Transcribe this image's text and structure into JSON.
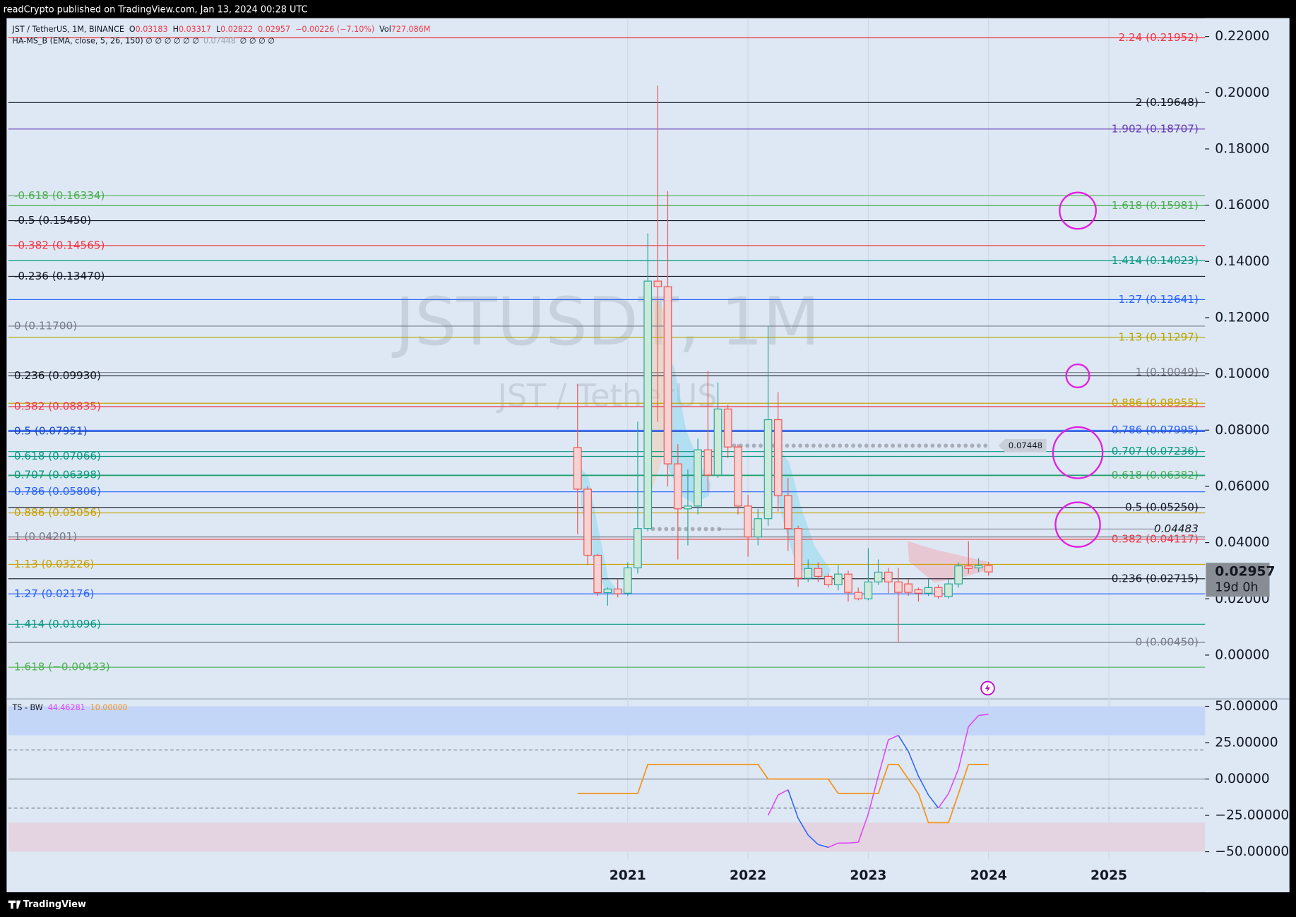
{
  "header": {
    "attribution": "readCrypto published on TradingView.com, Jan 13, 2024 00:28 UTC",
    "brand": "TradingView"
  },
  "chart_data": [
    {
      "type": "candlestick",
      "title": "JSTUSDT, 1M",
      "subtitle": "JST / TetherUS",
      "symbol": "JST / TetherUS, 1M, BINANCE",
      "ohlc_legend": [
        {
          "label": "O",
          "value": 0.03183
        },
        {
          "label": "H",
          "value": 0.03317
        },
        {
          "label": "L",
          "value": 0.02822
        }
      ],
      "change": "−0.00226 (−7.10%)",
      "volume_label": "Vol",
      "volume": "727.086M",
      "indicator_legend": "HA-MS_B (EMA, close, 5, 26, 150)  ∅ ∅ ∅ ∅ ∅ ∅",
      "indicator_last": 0.07448,
      "indicator_tail": "∅ ∅ ∅ ∅",
      "countdown": "19d 0h",
      "x": [
        2020.583,
        2020.667,
        2020.75,
        2020.833,
        2020.917,
        2021,
        2021.083,
        2021.167,
        2021.25,
        2021.333,
        2021.417,
        2021.5,
        2021.583,
        2021.667,
        2021.75,
        2021.833,
        2021.917,
        2022,
        2022.083,
        2022.167,
        2022.25,
        2022.333,
        2022.417,
        2022.5,
        2022.583,
        2022.667,
        2022.75,
        2022.833,
        2022.917,
        2023,
        2023.083,
        2023.167,
        2023.25,
        2023.333,
        2023.417,
        2023.5,
        2023.583,
        2023.667,
        2023.75,
        2023.833,
        2023.917,
        2024
      ],
      "open": [
        0.0738,
        0.059,
        0.0355,
        0.0222,
        0.0235,
        0.022,
        0.031,
        0.045,
        0.133,
        0.131,
        0.068,
        0.052,
        0.053,
        0.073,
        0.064,
        0.0875,
        0.074,
        0.053,
        0.042,
        0.0485,
        0.0837,
        0.0567,
        0.045,
        0.0273,
        0.0308,
        0.028,
        0.025,
        0.0288,
        0.0223,
        0.02,
        0.026,
        0.0295,
        0.026,
        0.0253,
        0.0232,
        0.022,
        0.024,
        0.0208,
        0.0253,
        0.0317,
        0.031,
        0.03183
      ],
      "high": [
        0.0963,
        0.06,
        0.036,
        0.024,
        0.027,
        0.033,
        0.083,
        0.15,
        0.2025,
        0.165,
        0.075,
        0.066,
        0.077,
        0.101,
        0.097,
        0.089,
        0.075,
        0.057,
        0.052,
        0.117,
        0.0935,
        0.063,
        0.046,
        0.034,
        0.033,
        0.029,
        0.032,
        0.03,
        0.024,
        0.038,
        0.034,
        0.031,
        0.031,
        0.027,
        0.024,
        0.027,
        0.025,
        0.027,
        0.033,
        0.0405,
        0.0345,
        0.03317
      ],
      "low": [
        0.043,
        0.032,
        0.021,
        0.0176,
        0.0205,
        0.021,
        0.029,
        0.044,
        0.083,
        0.06,
        0.034,
        0.039,
        0.05,
        0.058,
        0.063,
        0.07,
        0.05,
        0.035,
        0.039,
        0.046,
        0.051,
        0.037,
        0.0243,
        0.026,
        0.026,
        0.024,
        0.023,
        0.019,
        0.0195,
        0.0195,
        0.025,
        0.022,
        0.0045,
        0.021,
        0.019,
        0.021,
        0.02,
        0.02,
        0.024,
        0.029,
        0.0295,
        0.02822
      ],
      "close": [
        0.059,
        0.0355,
        0.0222,
        0.0235,
        0.0218,
        0.031,
        0.045,
        0.133,
        0.131,
        0.068,
        0.052,
        0.053,
        0.073,
        0.064,
        0.0875,
        0.074,
        0.053,
        0.042,
        0.0485,
        0.0837,
        0.0567,
        0.045,
        0.0273,
        0.0308,
        0.028,
        0.025,
        0.0288,
        0.0223,
        0.02,
        0.026,
        0.0295,
        0.026,
        0.0223,
        0.0223,
        0.022,
        0.024,
        0.0208,
        0.0253,
        0.0317,
        0.0308,
        0.0318,
        0.02957
      ],
      "up_color": "#26a69a",
      "down_color": "#ef5350",
      "xlim": [
        2015.85,
        2025.8
      ],
      "xticks": [
        2021,
        2022,
        2023,
        2024,
        2025
      ],
      "xgrid": true,
      "ylim": [
        -0.0153,
        0.2265
      ],
      "yticks": [
        {
          "value": 0.22,
          "label": "0.22000"
        },
        {
          "value": 0.2,
          "label": "0.20000"
        },
        {
          "value": 0.18,
          "label": "0.18000"
        },
        {
          "value": 0.16,
          "label": "0.16000"
        },
        {
          "value": 0.14,
          "label": "0.14000"
        },
        {
          "value": 0.12,
          "label": "0.12000"
        },
        {
          "value": 0.1,
          "label": "0.10000"
        },
        {
          "value": 0.08,
          "label": "0.08000"
        },
        {
          "value": 0.06,
          "label": "0.06000"
        },
        {
          "value": 0.04,
          "label": "0.04000"
        },
        {
          "value": 0.02,
          "label": "0.02000"
        },
        {
          "value": 0,
          "label": "0.00000"
        }
      ],
      "levels": [
        {
          "side": "right",
          "label": "2.24 (0.21952)",
          "value": 0.21952,
          "color": "#f23645"
        },
        {
          "side": "right",
          "label": "2 (0.19648)",
          "value": 0.19648,
          "color": "#131722"
        },
        {
          "side": "right",
          "label": "1.902 (0.18707)",
          "value": 0.18707,
          "color": "#673ab7"
        },
        {
          "side": "right",
          "label": "1.618 (0.15981)",
          "value": 0.15981,
          "color": "#4caf50"
        },
        {
          "side": "right",
          "label": "1.414 (0.14023)",
          "value": 0.14023,
          "color": "#089981"
        },
        {
          "side": "right",
          "label": "1.27 (0.12641)",
          "value": 0.12641,
          "color": "#2962ff"
        },
        {
          "side": "right",
          "label": "1.13 (0.11297)",
          "value": 0.11297,
          "color": "#b5a600"
        },
        {
          "side": "right",
          "label": "1 (0.10049)",
          "value": 0.10049,
          "color": "#787b86"
        },
        {
          "side": "right",
          "label": "0.886 (0.08955)",
          "value": 0.08955,
          "color": "#c9a000"
        },
        {
          "side": "right",
          "label": "0.786 (0.07995)",
          "value": 0.07995,
          "color": "#2962ff"
        },
        {
          "side": "right",
          "label": "0.707 (0.07236)",
          "value": 0.07236,
          "color": "#089981"
        },
        {
          "side": "right",
          "label": "0.618 (0.06382)",
          "value": 0.06382,
          "color": "#4caf50"
        },
        {
          "side": "right",
          "label": "0.5 (0.05250)",
          "value": 0.0525,
          "color": "#131722"
        },
        {
          "side": "right",
          "label": "0.382 (0.04117)",
          "value": 0.04117,
          "color": "#f23645"
        },
        {
          "side": "right",
          "label": "0.236 (0.02715)",
          "value": 0.02715,
          "color": "#131722"
        },
        {
          "side": "right",
          "label": "0 (0.00450)",
          "value": 0.0045,
          "color": "#787b86"
        },
        {
          "side": "left",
          "label": "-0.618 (0.16334)",
          "value": 0.16334,
          "color": "#4caf50"
        },
        {
          "side": "left",
          "label": "-0.5 (0.15450)",
          "value": 0.1545,
          "color": "#131722"
        },
        {
          "side": "left",
          "label": "-0.382 (0.14565)",
          "value": 0.14565,
          "color": "#f23645"
        },
        {
          "side": "left",
          "label": "-0.236 (0.13470)",
          "value": 0.1347,
          "color": "#131722"
        },
        {
          "side": "left",
          "label": "0 (0.11700)",
          "value": 0.117,
          "color": "#787b86"
        },
        {
          "side": "left",
          "label": "0.236 (0.09930)",
          "value": 0.0993,
          "color": "#131722"
        },
        {
          "side": "left",
          "label": "0.382 (0.08835)",
          "value": 0.08835,
          "color": "#f23645"
        },
        {
          "side": "left",
          "label": "0.5 (0.07951)",
          "value": 0.07951,
          "color": "#1848cc"
        },
        {
          "side": "left",
          "label": "0.618 (0.07066)",
          "value": 0.07066,
          "color": "#089981"
        },
        {
          "side": "left",
          "label": "0.707 (0.06398)",
          "value": 0.06398,
          "color": "#089981"
        },
        {
          "side": "left",
          "label": "0.786 (0.05806)",
          "value": 0.05806,
          "color": "#2962ff"
        },
        {
          "side": "left",
          "label": "0.886 (0.05056)",
          "value": 0.05056,
          "color": "#c9a000"
        },
        {
          "side": "left",
          "label": "1 (0.04201)",
          "value": 0.04201,
          "color": "#787b86"
        },
        {
          "side": "left",
          "label": "1.13 (0.03226)",
          "value": 0.03226,
          "color": "#c9a000"
        },
        {
          "side": "left",
          "label": "1.27 (0.02176)",
          "value": 0.02176,
          "color": "#2962ff"
        },
        {
          "side": "left",
          "label": "1.414 (0.01096)",
          "value": 0.01096,
          "color": "#089981"
        },
        {
          "side": "left",
          "label": "1.618 (−0.00433)",
          "value": -0.00433,
          "color": "#4caf50"
        }
      ],
      "ha_levels": [
        {
          "value": 0.07448,
          "x": [
            2021.83,
            2024.0
          ],
          "tag": "box"
        },
        {
          "value": 0.04483,
          "x": [
            2021.21,
            2021.76
          ],
          "tag": "italic"
        }
      ]
    },
    {
      "type": "line",
      "title": "TS - BW",
      "x": [
        2020.583,
        2020.667,
        2020.75,
        2020.833,
        2020.917,
        2021,
        2021.083,
        2021.167,
        2021.25,
        2021.333,
        2021.417,
        2021.5,
        2021.583,
        2021.667,
        2021.75,
        2021.833,
        2021.917,
        2022,
        2022.083,
        2022.167,
        2022.25,
        2022.333,
        2022.417,
        2022.5,
        2022.583,
        2022.667,
        2022.75,
        2022.833,
        2022.917,
        2023,
        2023.083,
        2023.167,
        2023.25,
        2023.333,
        2023.417,
        2023.5,
        2023.583,
        2023.667,
        2023.75,
        2023.833,
        2023.917,
        2024
      ],
      "series": [
        {
          "color": "#e040fb",
          "color_down": "#2962ff",
          "values": [
            null,
            null,
            null,
            null,
            null,
            null,
            null,
            null,
            null,
            null,
            null,
            null,
            null,
            null,
            null,
            null,
            null,
            null,
            null,
            -25,
            -11,
            -7.4,
            -27,
            -38.6,
            -45,
            -47,
            -44,
            -44,
            -43.5,
            -24,
            2,
            27,
            30,
            19,
            2,
            -11,
            -20,
            -10,
            7,
            36,
            43.7,
            44.46281
          ]
        },
        {
          "color": "#f7931a",
          "last_label": "10.00000",
          "values": [
            -10,
            -10,
            -10,
            -10,
            -10,
            -10,
            -10,
            10,
            10,
            10,
            10,
            10,
            10,
            10,
            10,
            10,
            10,
            10,
            10,
            0,
            0,
            0,
            0,
            0,
            0,
            0,
            -10,
            -10,
            -10,
            -10,
            -10,
            10,
            10,
            0,
            -10,
            -30,
            -30,
            -30,
            -10,
            10,
            10,
            10
          ]
        }
      ],
      "xlim": [
        2015.85,
        2025.8
      ],
      "ylim": [
        -55.1,
        54.5
      ],
      "yticks": [
        {
          "value": 50,
          "label": "50.00000"
        },
        {
          "value": 25,
          "label": "25.00000"
        },
        {
          "value": 0,
          "label": "0.00000"
        },
        {
          "value": -25,
          "label": "−25.00000"
        },
        {
          "value": -50,
          "label": "−50.00000"
        }
      ],
      "bands": [
        {
          "from": 30,
          "to": 50,
          "color": "#c4d6f7"
        },
        {
          "from": -30,
          "to": -50,
          "color": "#e4d4e2"
        }
      ],
      "hlines": [
        {
          "value": 20,
          "dash": true
        },
        {
          "value": 0,
          "dash": false
        },
        {
          "value": -20,
          "dash": true
        }
      ]
    }
  ]
}
